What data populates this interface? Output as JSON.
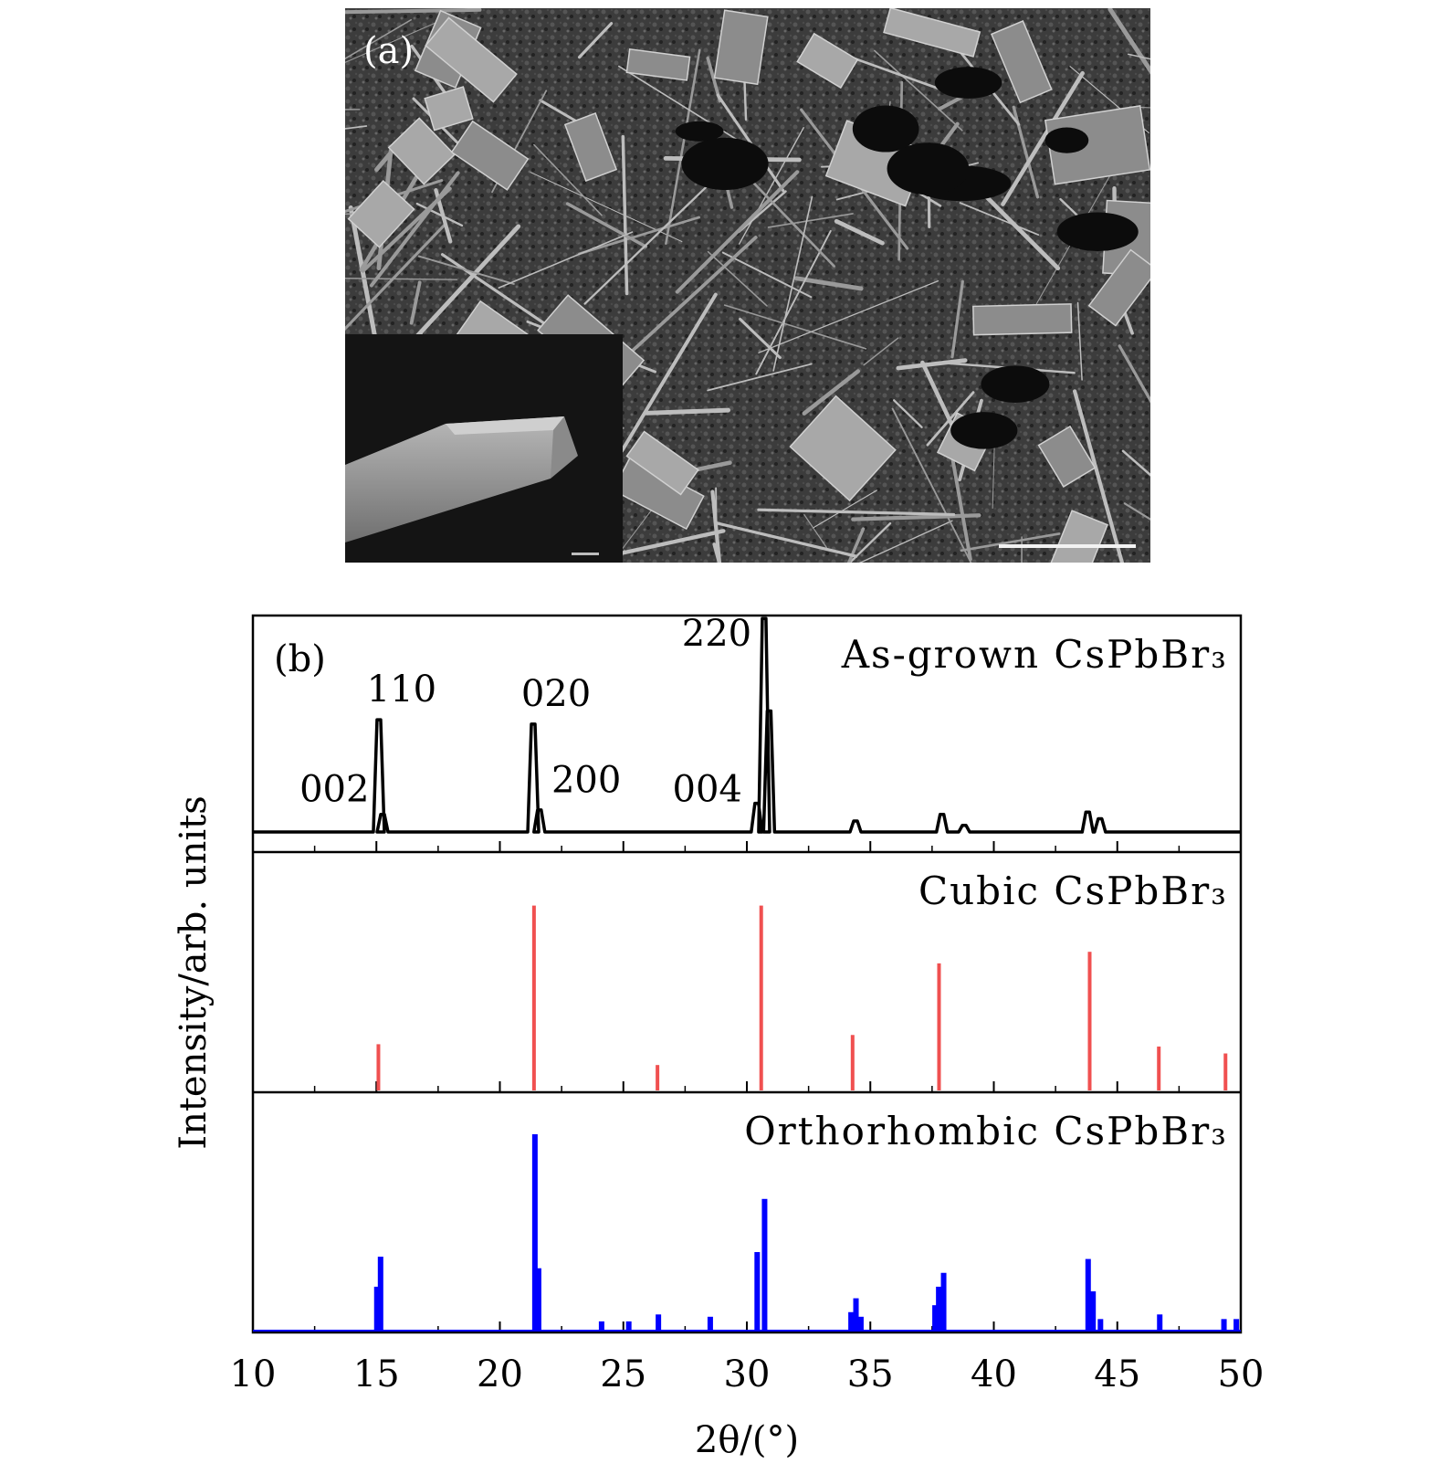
{
  "panel_a": {
    "label": "(a)"
  },
  "panel_b": {
    "label": "(b)"
  },
  "chart_data": {
    "type": "bar",
    "xlabel": "2θ/(°)",
    "ylabel": "Intensity/arb. units",
    "xlim": [
      10,
      50
    ],
    "xticks": [
      10,
      15,
      20,
      25,
      30,
      35,
      40,
      45,
      50
    ],
    "colors": {
      "as_grown": "#000000",
      "cubic": "#f05050",
      "orthorhombic": "#0000ff"
    },
    "series": [
      {
        "name": "As-grown CsPbBr₃",
        "style": "line",
        "ylim": [
          0,
          1
        ],
        "peaks": [
          {
            "x": 15.1,
            "y": 0.51,
            "label": "110"
          },
          {
            "x": 15.25,
            "y": 0.08
          },
          {
            "x": 21.35,
            "y": 0.49,
            "label": "020"
          },
          {
            "x": 21.6,
            "y": 0.1
          },
          {
            "x": 30.4,
            "y": 0.13
          },
          {
            "x": 30.7,
            "y": 0.97,
            "label": "220"
          },
          {
            "x": 30.9,
            "y": 0.55
          },
          {
            "x": 34.4,
            "y": 0.05
          },
          {
            "x": 37.9,
            "y": 0.08
          },
          {
            "x": 38.8,
            "y": 0.03
          },
          {
            "x": 43.8,
            "y": 0.09
          },
          {
            "x": 44.3,
            "y": 0.06
          }
        ],
        "annotations": [
          {
            "text": "002",
            "x": 13.3,
            "y": 0.14
          },
          {
            "text": "200",
            "x": 23.5,
            "y": 0.18
          },
          {
            "text": "004",
            "x": 28.4,
            "y": 0.14
          }
        ]
      },
      {
        "name": "Cubic CsPbBr₃",
        "style": "stick",
        "ylim": [
          0,
          1
        ],
        "peaks": [
          {
            "x": 15.1,
            "y": 0.2
          },
          {
            "x": 21.4,
            "y": 0.8
          },
          {
            "x": 26.4,
            "y": 0.11
          },
          {
            "x": 30.6,
            "y": 0.8
          },
          {
            "x": 34.3,
            "y": 0.24
          },
          {
            "x": 37.8,
            "y": 0.55
          },
          {
            "x": 43.9,
            "y": 0.6
          },
          {
            "x": 46.7,
            "y": 0.19
          },
          {
            "x": 49.4,
            "y": 0.16
          }
        ]
      },
      {
        "name": "Orthorhombic CsPbBr₃",
        "style": "stick",
        "ylim": [
          0,
          1
        ],
        "peaks": [
          {
            "x": 15.0,
            "y": 0.19
          },
          {
            "x": 15.15,
            "y": 0.32
          },
          {
            "x": 21.4,
            "y": 0.85
          },
          {
            "x": 21.55,
            "y": 0.27
          },
          {
            "x": 24.1,
            "y": 0.04
          },
          {
            "x": 25.2,
            "y": 0.04
          },
          {
            "x": 26.4,
            "y": 0.07
          },
          {
            "x": 28.5,
            "y": 0.06
          },
          {
            "x": 30.4,
            "y": 0.34
          },
          {
            "x": 30.7,
            "y": 0.57
          },
          {
            "x": 34.2,
            "y": 0.08
          },
          {
            "x": 34.4,
            "y": 0.14
          },
          {
            "x": 34.6,
            "y": 0.06
          },
          {
            "x": 37.6,
            "y": 0.11
          },
          {
            "x": 37.75,
            "y": 0.19
          },
          {
            "x": 37.95,
            "y": 0.25
          },
          {
            "x": 43.8,
            "y": 0.31
          },
          {
            "x": 44.0,
            "y": 0.17
          },
          {
            "x": 44.3,
            "y": 0.05
          },
          {
            "x": 46.7,
            "y": 0.07
          },
          {
            "x": 49.3,
            "y": 0.05
          },
          {
            "x": 49.8,
            "y": 0.05
          }
        ]
      }
    ]
  }
}
